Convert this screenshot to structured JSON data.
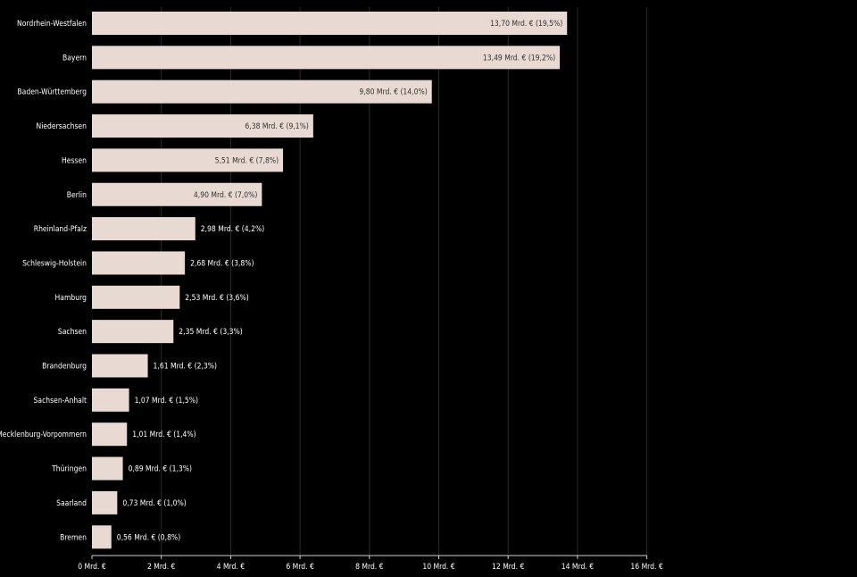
{
  "chart_data": {
    "type": "bar",
    "orientation": "horizontal",
    "categories": [
      "Nordrhein-Westfalen",
      "Bayern",
      "Baden-Württemberg",
      "Niedersachsen",
      "Hessen",
      "Berlin",
      "Rheinland-Pfalz",
      "Schleswig-Holstein",
      "Hamburg",
      "Sachsen",
      "Brandenburg",
      "Sachsen-Anhalt",
      "Mecklenburg-Vorpommern",
      "Thüringen",
      "Saarland",
      "Bremen"
    ],
    "values": [
      13.7,
      13.49,
      9.8,
      6.38,
      5.51,
      4.9,
      2.98,
      2.68,
      2.53,
      2.35,
      1.61,
      1.07,
      1.01,
      0.89,
      0.73,
      0.56
    ],
    "data_labels": [
      "13,70 Mrd. € (19,5%)",
      "13,49 Mrd. € (19,2%)",
      "9,80 Mrd. € (14,0%)",
      "6,38 Mrd. € (9,1%)",
      "5,51 Mrd. € (7,8%)",
      "4,90 Mrd. € (7,0%)",
      "2,98 Mrd. € (4,2%)",
      "2,68 Mrd. € (3,8%)",
      "2,53 Mrd. € (3,6%)",
      "2,35 Mrd. € (3,3%)",
      "1,61 Mrd. € (2,3%)",
      "1,07 Mrd. € (1,5%)",
      "1,01 Mrd. € (1,4%)",
      "0,89 Mrd. € (1,3%)",
      "0,73 Mrd. € (1,0%)",
      "0,56 Mrd. € (0,8%)"
    ],
    "xlim": [
      0,
      16
    ],
    "xticks": [
      0,
      2,
      4,
      6,
      8,
      10,
      12,
      14,
      16
    ],
    "xtick_labels": [
      "0 Mrd. €",
      "2 Mrd. €",
      "4 Mrd. €",
      "6 Mrd. €",
      "8 Mrd. €",
      "10 Mrd. €",
      "12 Mrd. €",
      "14 Mrd. €",
      "16 Mrd. €"
    ],
    "title": "",
    "xlabel": "",
    "ylabel": "",
    "grid": "vertical",
    "colors": {
      "background": "#000000",
      "bar": "#e8d9d2",
      "grid": "#2a2a2a",
      "axis": "#cfcfcf",
      "text": "#ffffff",
      "label_inside": "#333333"
    }
  }
}
